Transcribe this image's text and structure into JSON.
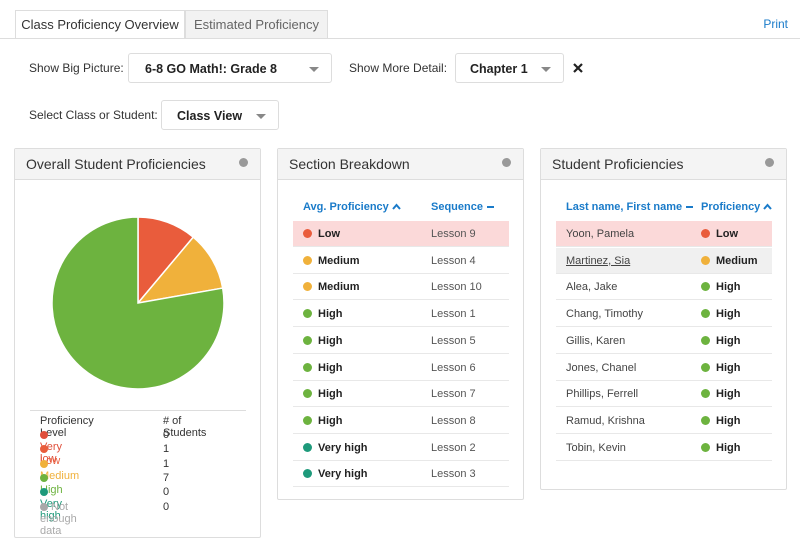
{
  "tabs": [
    "Class Proficiency Overview",
    "Estimated Proficiency"
  ],
  "print": "Print",
  "filters": {
    "big_picture_label": "Show Big Picture:",
    "big_picture_value": "6-8 GO Math!: Grade 8",
    "detail_label": "Show More Detail:",
    "detail_value": "Chapter 1",
    "select_label": "Select Class or Student:",
    "select_value": "Class View"
  },
  "overall": {
    "title": "Overall Student Proficiencies",
    "type": "pie",
    "legend_header": [
      "Proficiency Level",
      "# of Students"
    ],
    "levels": [
      {
        "name": "Very low",
        "color": "#df4f3b",
        "count": 0
      },
      {
        "name": "Low",
        "color": "#e95c3c",
        "count": 1
      },
      {
        "name": "Medium",
        "color": "#f0b13b",
        "count": 1
      },
      {
        "name": "High",
        "color": "#6db33f",
        "count": 7
      },
      {
        "name": "Very high",
        "color": "#1e9a7b",
        "count": 0
      },
      {
        "name": "Not enough data",
        "color": "#a9a9a9",
        "count": 0
      }
    ]
  },
  "sections": {
    "title": "Section Breakdown",
    "headers": [
      "Avg. Proficiency",
      "Sequence"
    ],
    "rows": [
      [
        "Low",
        "Lesson 9"
      ],
      [
        "Medium",
        "Lesson 4"
      ],
      [
        "Medium",
        "Lesson 10"
      ],
      [
        "High",
        "Lesson 1"
      ],
      [
        "High",
        "Lesson 5"
      ],
      [
        "High",
        "Lesson 6"
      ],
      [
        "High",
        "Lesson 7"
      ],
      [
        "High",
        "Lesson 8"
      ],
      [
        "Very high",
        "Lesson 2"
      ],
      [
        "Very high",
        "Lesson 3"
      ]
    ]
  },
  "students": {
    "title": "Student Proficiencies",
    "headers": [
      "Last name, First name",
      "Proficiency"
    ],
    "rows": [
      [
        "Yoon, Pamela",
        "Low"
      ],
      [
        "Martinez, Sia",
        "Medium"
      ],
      [
        "Alea, Jake",
        "High"
      ],
      [
        "Chang, Timothy",
        "High"
      ],
      [
        "Gillis, Karen",
        "High"
      ],
      [
        "Jones, Chanel",
        "High"
      ],
      [
        "Phillips, Ferrell",
        "High"
      ],
      [
        "Ramud, Krishna",
        "High"
      ],
      [
        "Tobin, Kevin",
        "High"
      ]
    ]
  }
}
